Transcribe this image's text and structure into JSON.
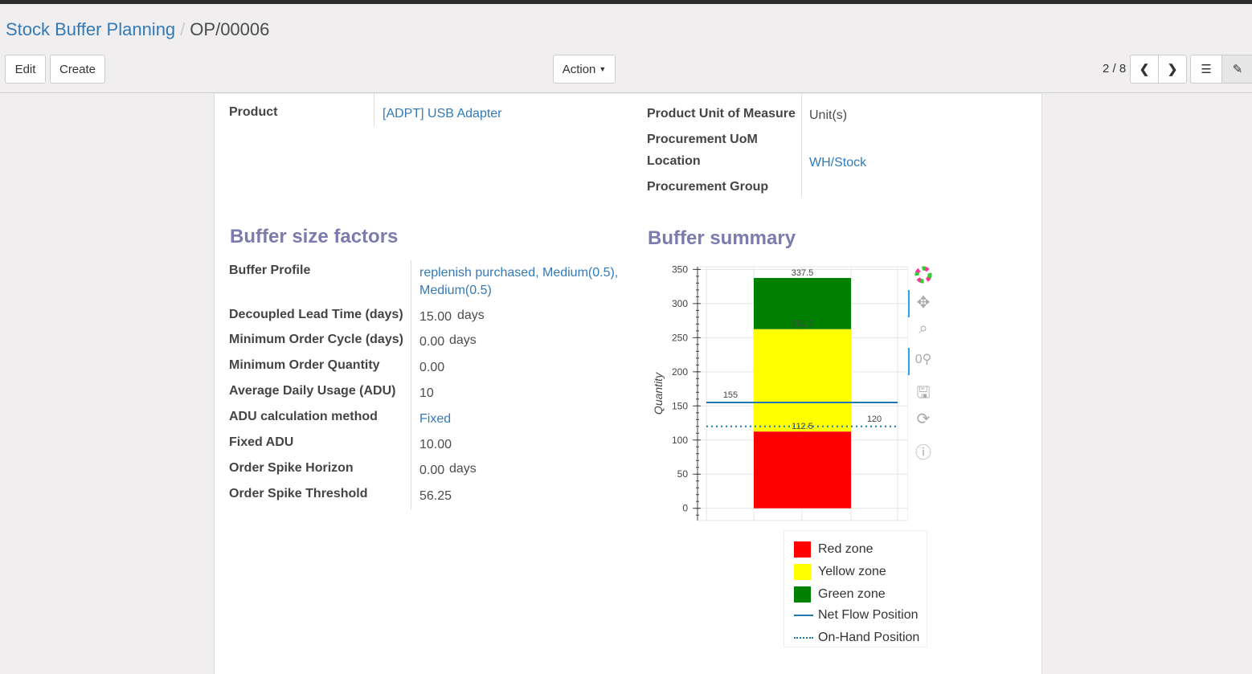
{
  "breadcrumb": {
    "parent": "Stock Buffer Planning",
    "current": "OP/00006"
  },
  "toolbar": {
    "edit": "Edit",
    "create": "Create",
    "action": "Action",
    "pager": "2 / 8"
  },
  "fields_top_left": [
    {
      "label": "Product",
      "value": "[ADPT] USB Adapter"
    }
  ],
  "fields_top_right": [
    {
      "label": "Product Unit of Measure",
      "value": "Unit(s)"
    },
    {
      "label": "Procurement UoM",
      "value": ""
    },
    {
      "label": "Location",
      "value": "WH/Stock"
    },
    {
      "label": "Procurement Group",
      "value": ""
    }
  ],
  "factors": {
    "title": "Buffer size factors",
    "rows": [
      {
        "label": "Buffer Profile",
        "value": "replenish purchased, Medium(0.5),",
        "value2": "Medium(0.5)"
      },
      {
        "label": "Decoupled Lead Time (days)",
        "value": "15.00",
        "unit": "days"
      },
      {
        "label": "Minimum Order Cycle (days)",
        "value": "0.00",
        "unit": "days"
      },
      {
        "label": "Minimum Order Quantity",
        "value": "0.00"
      },
      {
        "label": "Average Daily Usage (ADU)",
        "value": "10"
      },
      {
        "label": "ADU calculation method",
        "value": "Fixed"
      },
      {
        "label": "Fixed ADU",
        "value": "10.00"
      },
      {
        "label": "Order Spike Horizon",
        "value": "0.00",
        "unit": "days"
      },
      {
        "label": "Order Spike Threshold",
        "value": "56.25"
      }
    ]
  },
  "summary": {
    "title": "Buffer summary"
  },
  "chart_data": {
    "type": "bar",
    "stacked": true,
    "ylabel": "Quantity",
    "ylim": [
      -18,
      354
    ],
    "yticks": [
      0,
      50,
      100,
      150,
      200,
      250,
      300,
      350
    ],
    "grid": true,
    "zones": [
      {
        "name": "Red zone",
        "from": 0,
        "to": 112.5,
        "color": "#ff0000",
        "label": "112.5"
      },
      {
        "name": "Yellow zone",
        "from": 112.5,
        "to": 262.5,
        "color": "#ffff00",
        "label": "262.5"
      },
      {
        "name": "Green zone",
        "from": 262.5,
        "to": 337.5,
        "color": "#008000",
        "label": "337.5"
      }
    ],
    "lines": [
      {
        "name": "Net Flow Position",
        "value": 155,
        "label": "155",
        "style": "solid",
        "color": "#1f77b4"
      },
      {
        "name": "On-Hand Position",
        "value": 120,
        "label": "120",
        "style": "dotted",
        "color": "#1f77b4"
      }
    ],
    "legend": "bottom"
  }
}
